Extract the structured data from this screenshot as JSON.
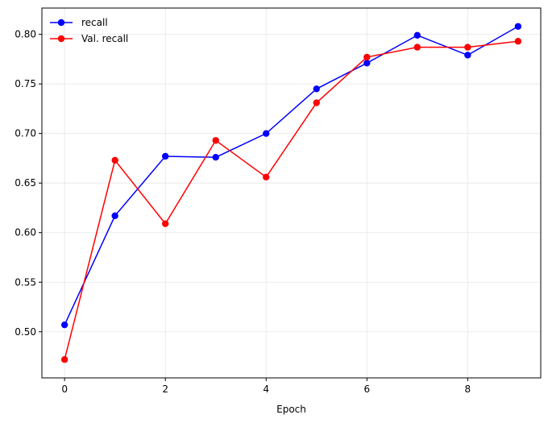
{
  "chart_data": {
    "type": "line",
    "title": "",
    "xlabel": "Epoch",
    "ylabel": "",
    "x": [
      0,
      1,
      2,
      3,
      4,
      5,
      6,
      7,
      8,
      9
    ],
    "xlim": [
      -0.45,
      9.45
    ],
    "ylim": [
      0.4535,
      0.8265
    ],
    "x_ticks": [
      0,
      2,
      4,
      6,
      8
    ],
    "x_tick_labels": [
      "0",
      "2",
      "4",
      "6",
      "8"
    ],
    "y_ticks": [
      0.5,
      0.55,
      0.6,
      0.65,
      0.7,
      0.75,
      0.8
    ],
    "y_tick_labels": [
      "0.50",
      "0.55",
      "0.60",
      "0.65",
      "0.70",
      "0.75",
      "0.80"
    ],
    "grid": true,
    "legend_position": "top-left",
    "series": [
      {
        "name": "recall",
        "color": "#0000ff",
        "marker": "circle",
        "values": [
          0.507,
          0.617,
          0.677,
          0.676,
          0.7,
          0.745,
          0.771,
          0.799,
          0.779,
          0.808
        ]
      },
      {
        "name": "Val. recall",
        "color": "#ff0000",
        "marker": "circle",
        "values": [
          0.472,
          0.673,
          0.609,
          0.693,
          0.656,
          0.731,
          0.777,
          0.787,
          0.787,
          0.793
        ]
      }
    ]
  }
}
